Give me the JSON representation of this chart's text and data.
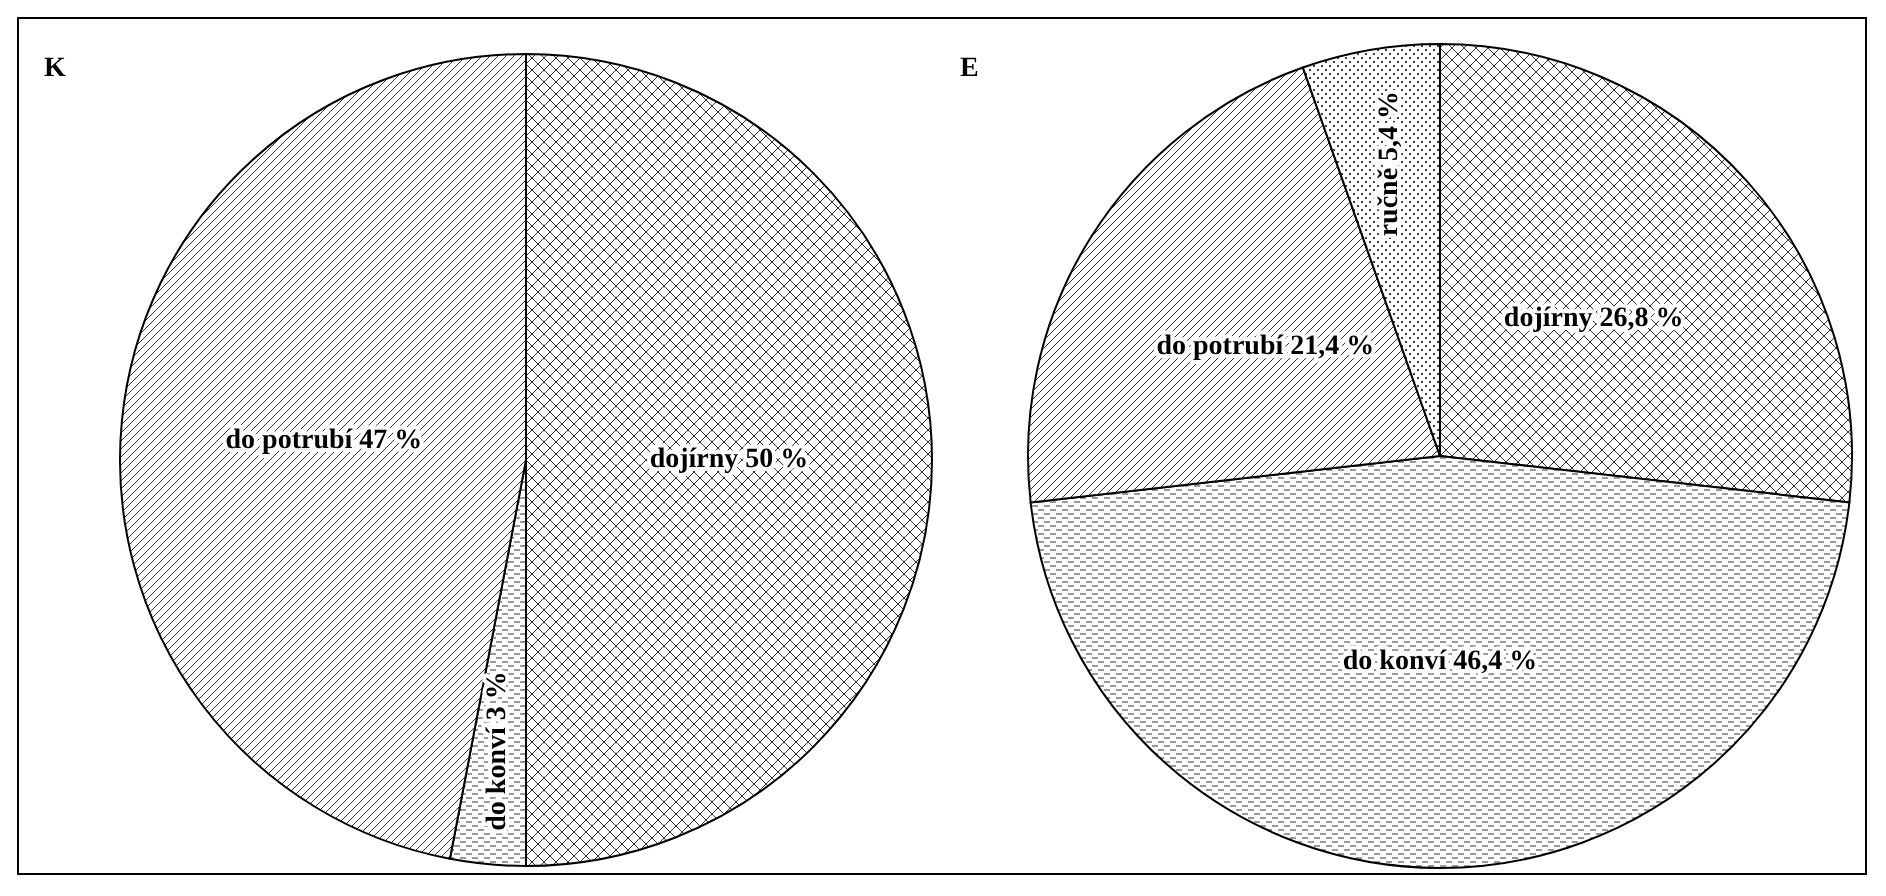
{
  "chart_data": [
    {
      "type": "pie",
      "title": "K",
      "categories": [
        "dojírny",
        "do konví",
        "do potrubí"
      ],
      "values": [
        50,
        3,
        47
      ],
      "value_labels": [
        "50 %",
        "3 %",
        "47 %"
      ],
      "colors": [
        "#000000",
        "#000000",
        "#000000"
      ]
    },
    {
      "type": "pie",
      "title": "E",
      "categories": [
        "dojírny",
        "do konví",
        "do potrubí",
        "ručně"
      ],
      "values": [
        26.8,
        46.4,
        21.4,
        5.4
      ],
      "value_labels": [
        "26,8 %",
        "46,4 %",
        "21,4 %",
        "5,4 %"
      ],
      "colors": [
        "#000000",
        "#000000",
        "#000000",
        "#000000"
      ]
    }
  ]
}
